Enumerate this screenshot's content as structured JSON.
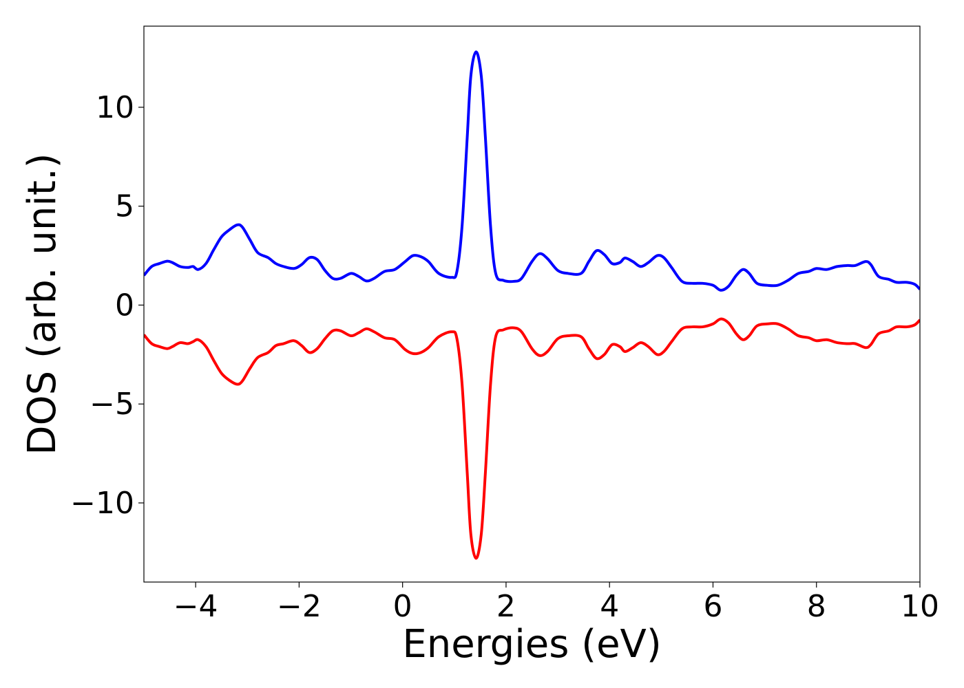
{
  "chart_data": {
    "type": "line",
    "title": "",
    "xlabel": "Energies (eV)",
    "ylabel": "DOS (arb. unit.)",
    "xlim": [
      -5,
      10
    ],
    "ylim": [
      -14,
      14.1
    ],
    "xticks": [
      -4,
      -2,
      0,
      2,
      4,
      6,
      8,
      10
    ],
    "yticks": [
      -10,
      -5,
      0,
      5,
      10
    ],
    "grid": false,
    "legend": "none",
    "series": [
      {
        "color": "#0000ff",
        "points": [
          [
            -5.0,
            1.5
          ],
          [
            -4.85,
            1.95
          ],
          [
            -4.7,
            2.1
          ],
          [
            -4.55,
            2.22
          ],
          [
            -4.45,
            2.15
          ],
          [
            -4.3,
            1.95
          ],
          [
            -4.15,
            1.9
          ],
          [
            -4.05,
            1.95
          ],
          [
            -3.95,
            1.8
          ],
          [
            -3.8,
            2.1
          ],
          [
            -3.65,
            2.8
          ],
          [
            -3.5,
            3.45
          ],
          [
            -3.35,
            3.8
          ],
          [
            -3.2,
            4.05
          ],
          [
            -3.1,
            3.95
          ],
          [
            -2.95,
            3.3
          ],
          [
            -2.8,
            2.65
          ],
          [
            -2.6,
            2.4
          ],
          [
            -2.45,
            2.1
          ],
          [
            -2.3,
            1.95
          ],
          [
            -2.1,
            1.85
          ],
          [
            -1.95,
            2.05
          ],
          [
            -1.8,
            2.4
          ],
          [
            -1.65,
            2.3
          ],
          [
            -1.5,
            1.75
          ],
          [
            -1.35,
            1.35
          ],
          [
            -1.2,
            1.35
          ],
          [
            -1.0,
            1.6
          ],
          [
            -0.85,
            1.45
          ],
          [
            -0.7,
            1.22
          ],
          [
            -0.55,
            1.35
          ],
          [
            -0.35,
            1.7
          ],
          [
            -0.15,
            1.8
          ],
          [
            0.05,
            2.2
          ],
          [
            0.2,
            2.5
          ],
          [
            0.35,
            2.45
          ],
          [
            0.5,
            2.2
          ],
          [
            0.7,
            1.6
          ],
          [
            0.95,
            1.4
          ],
          [
            1.05,
            1.7
          ],
          [
            1.15,
            4.0
          ],
          [
            1.25,
            8.5
          ],
          [
            1.32,
            11.6
          ],
          [
            1.42,
            12.8
          ],
          [
            1.52,
            11.6
          ],
          [
            1.6,
            8.5
          ],
          [
            1.7,
            4.0
          ],
          [
            1.8,
            1.6
          ],
          [
            1.95,
            1.25
          ],
          [
            2.15,
            1.2
          ],
          [
            2.3,
            1.35
          ],
          [
            2.5,
            2.2
          ],
          [
            2.65,
            2.6
          ],
          [
            2.8,
            2.35
          ],
          [
            3.0,
            1.75
          ],
          [
            3.2,
            1.6
          ],
          [
            3.45,
            1.6
          ],
          [
            3.6,
            2.2
          ],
          [
            3.75,
            2.75
          ],
          [
            3.9,
            2.55
          ],
          [
            4.05,
            2.1
          ],
          [
            4.2,
            2.15
          ],
          [
            4.3,
            2.38
          ],
          [
            4.45,
            2.2
          ],
          [
            4.6,
            1.95
          ],
          [
            4.75,
            2.15
          ],
          [
            4.92,
            2.5
          ],
          [
            5.05,
            2.4
          ],
          [
            5.2,
            1.9
          ],
          [
            5.4,
            1.2
          ],
          [
            5.6,
            1.1
          ],
          [
            5.8,
            1.1
          ],
          [
            6.0,
            1.0
          ],
          [
            6.15,
            0.75
          ],
          [
            6.3,
            0.95
          ],
          [
            6.45,
            1.5
          ],
          [
            6.58,
            1.8
          ],
          [
            6.7,
            1.6
          ],
          [
            6.85,
            1.1
          ],
          [
            7.05,
            1.0
          ],
          [
            7.25,
            1.0
          ],
          [
            7.45,
            1.25
          ],
          [
            7.65,
            1.6
          ],
          [
            7.85,
            1.7
          ],
          [
            8.0,
            1.85
          ],
          [
            8.2,
            1.8
          ],
          [
            8.4,
            1.95
          ],
          [
            8.6,
            2.0
          ],
          [
            8.75,
            2.0
          ],
          [
            8.95,
            2.2
          ],
          [
            9.05,
            2.05
          ],
          [
            9.2,
            1.45
          ],
          [
            9.4,
            1.3
          ],
          [
            9.55,
            1.15
          ],
          [
            9.75,
            1.15
          ],
          [
            9.9,
            1.05
          ],
          [
            10.0,
            0.8
          ]
        ]
      },
      {
        "color": "#ff0000",
        "points": [
          [
            -5.0,
            -1.5
          ],
          [
            -4.85,
            -1.95
          ],
          [
            -4.7,
            -2.1
          ],
          [
            -4.55,
            -2.2
          ],
          [
            -4.45,
            -2.1
          ],
          [
            -4.3,
            -1.9
          ],
          [
            -4.15,
            -1.95
          ],
          [
            -4.05,
            -1.85
          ],
          [
            -3.95,
            -1.75
          ],
          [
            -3.8,
            -2.1
          ],
          [
            -3.65,
            -2.8
          ],
          [
            -3.5,
            -3.45
          ],
          [
            -3.35,
            -3.8
          ],
          [
            -3.2,
            -4.0
          ],
          [
            -3.1,
            -3.85
          ],
          [
            -2.95,
            -3.2
          ],
          [
            -2.8,
            -2.65
          ],
          [
            -2.6,
            -2.4
          ],
          [
            -2.45,
            -2.05
          ],
          [
            -2.3,
            -1.95
          ],
          [
            -2.1,
            -1.8
          ],
          [
            -1.95,
            -2.05
          ],
          [
            -1.8,
            -2.4
          ],
          [
            -1.65,
            -2.2
          ],
          [
            -1.5,
            -1.7
          ],
          [
            -1.35,
            -1.3
          ],
          [
            -1.2,
            -1.3
          ],
          [
            -1.0,
            -1.55
          ],
          [
            -0.85,
            -1.4
          ],
          [
            -0.7,
            -1.2
          ],
          [
            -0.55,
            -1.35
          ],
          [
            -0.35,
            -1.65
          ],
          [
            -0.15,
            -1.75
          ],
          [
            0.05,
            -2.25
          ],
          [
            0.2,
            -2.45
          ],
          [
            0.35,
            -2.4
          ],
          [
            0.5,
            -2.15
          ],
          [
            0.7,
            -1.6
          ],
          [
            0.95,
            -1.35
          ],
          [
            1.05,
            -1.7
          ],
          [
            1.15,
            -4.0
          ],
          [
            1.25,
            -8.5
          ],
          [
            1.32,
            -11.6
          ],
          [
            1.42,
            -12.8
          ],
          [
            1.52,
            -11.6
          ],
          [
            1.6,
            -8.5
          ],
          [
            1.7,
            -4.0
          ],
          [
            1.8,
            -1.6
          ],
          [
            1.95,
            -1.25
          ],
          [
            2.15,
            -1.15
          ],
          [
            2.3,
            -1.35
          ],
          [
            2.5,
            -2.2
          ],
          [
            2.65,
            -2.55
          ],
          [
            2.8,
            -2.35
          ],
          [
            3.0,
            -1.7
          ],
          [
            3.2,
            -1.55
          ],
          [
            3.45,
            -1.6
          ],
          [
            3.6,
            -2.2
          ],
          [
            3.75,
            -2.7
          ],
          [
            3.9,
            -2.5
          ],
          [
            4.05,
            -2.0
          ],
          [
            4.2,
            -2.1
          ],
          [
            4.3,
            -2.35
          ],
          [
            4.45,
            -2.15
          ],
          [
            4.6,
            -1.9
          ],
          [
            4.75,
            -2.1
          ],
          [
            4.92,
            -2.5
          ],
          [
            5.05,
            -2.35
          ],
          [
            5.2,
            -1.85
          ],
          [
            5.4,
            -1.2
          ],
          [
            5.6,
            -1.1
          ],
          [
            5.8,
            -1.1
          ],
          [
            6.0,
            -0.95
          ],
          [
            6.15,
            -0.7
          ],
          [
            6.3,
            -0.9
          ],
          [
            6.45,
            -1.45
          ],
          [
            6.58,
            -1.75
          ],
          [
            6.7,
            -1.55
          ],
          [
            6.85,
            -1.05
          ],
          [
            7.05,
            -0.95
          ],
          [
            7.25,
            -0.95
          ],
          [
            7.45,
            -1.2
          ],
          [
            7.65,
            -1.55
          ],
          [
            7.85,
            -1.65
          ],
          [
            8.0,
            -1.8
          ],
          [
            8.2,
            -1.75
          ],
          [
            8.4,
            -1.9
          ],
          [
            8.6,
            -1.95
          ],
          [
            8.75,
            -1.95
          ],
          [
            8.95,
            -2.15
          ],
          [
            9.05,
            -2.0
          ],
          [
            9.2,
            -1.45
          ],
          [
            9.4,
            -1.3
          ],
          [
            9.55,
            -1.1
          ],
          [
            9.75,
            -1.1
          ],
          [
            9.9,
            -1.0
          ],
          [
            10.0,
            -0.75
          ]
        ]
      }
    ]
  }
}
